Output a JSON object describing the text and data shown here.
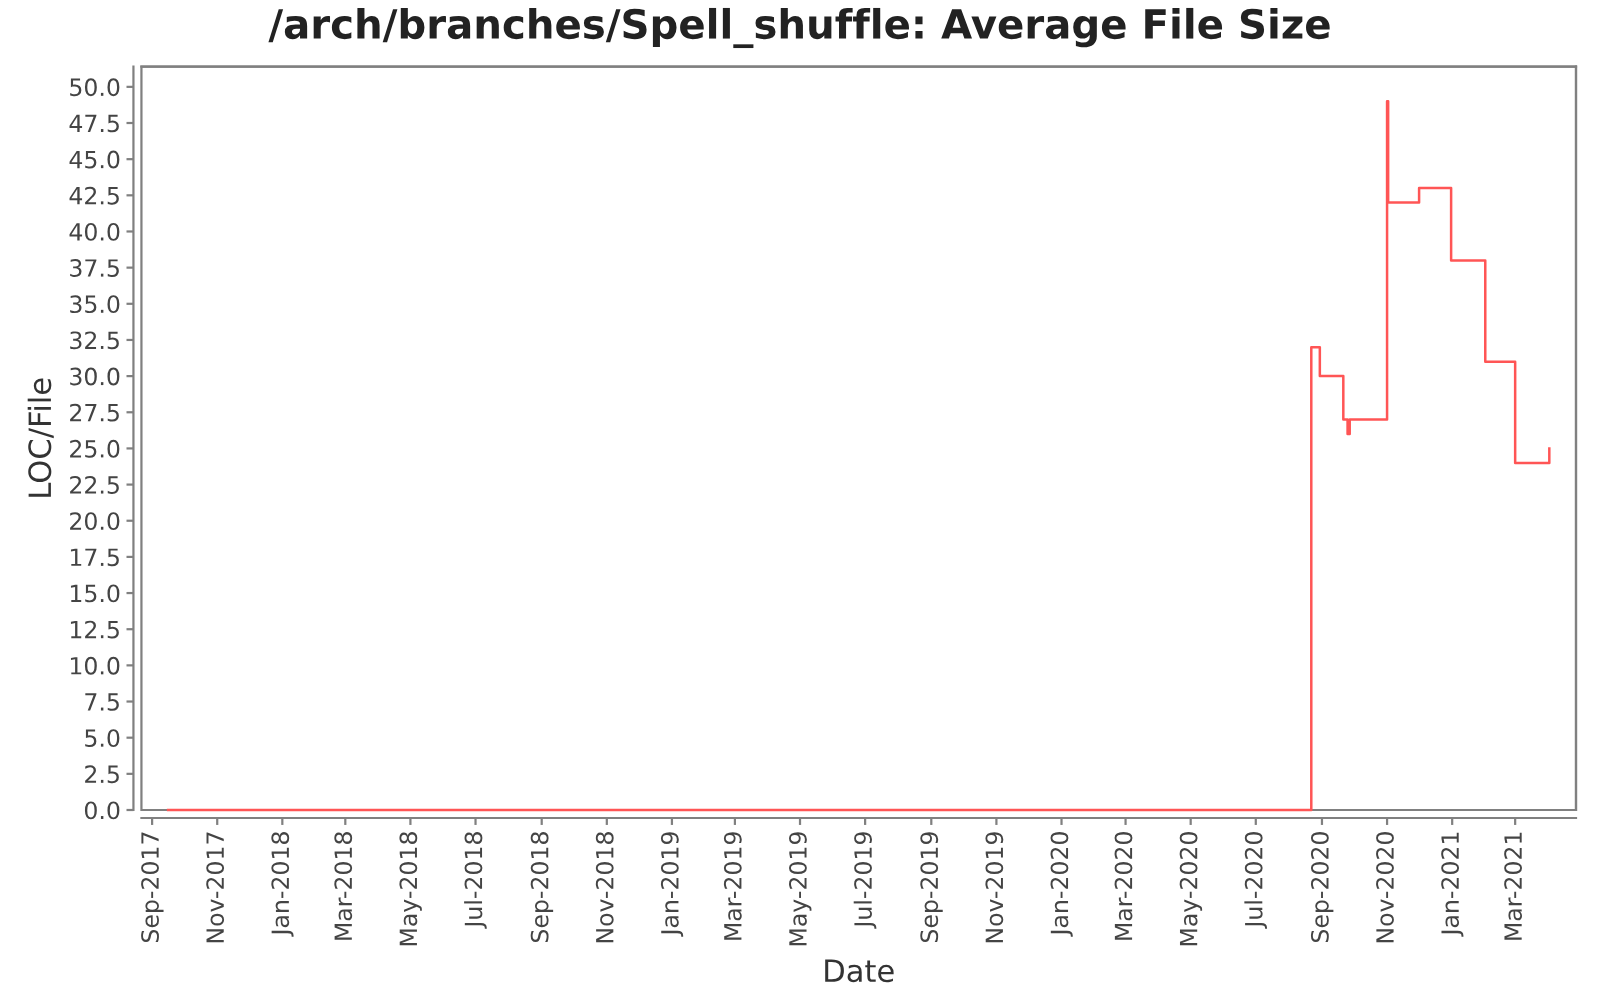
{
  "chart_data": {
    "type": "step",
    "title": "/arch/branches/Spell_shuffle: Average File Size",
    "xlabel": "Date",
    "ylabel": "LOC/File",
    "x": [
      "2017-09-16",
      "2020-08-22",
      "2020-08-30",
      "2020-09-21",
      "2020-09-25",
      "2020-09-27",
      "2020-11-01",
      "2020-11-02",
      "2020-12-01",
      "2020-12-31",
      "2021-02-01",
      "2021-03-01",
      "2021-04-02"
    ],
    "values": [
      0,
      32,
      30,
      27,
      26,
      27,
      49,
      42,
      43,
      38,
      31,
      24,
      25
    ],
    "color": "#ff5555",
    "line_style": "solid",
    "xlim": [
      "2017-08-22",
      "2021-04-27"
    ],
    "xticks": [
      {
        "value": "2017-09-01",
        "label": "Sep-2017"
      },
      {
        "value": "2017-11-01",
        "label": "Nov-2017"
      },
      {
        "value": "2018-01-01",
        "label": "Jan-2018"
      },
      {
        "value": "2018-03-01",
        "label": "Mar-2018"
      },
      {
        "value": "2018-05-01",
        "label": "May-2018"
      },
      {
        "value": "2018-07-01",
        "label": "Jul-2018"
      },
      {
        "value": "2018-09-01",
        "label": "Sep-2018"
      },
      {
        "value": "2018-11-01",
        "label": "Nov-2018"
      },
      {
        "value": "2019-01-01",
        "label": "Jan-2019"
      },
      {
        "value": "2019-03-01",
        "label": "Mar-2019"
      },
      {
        "value": "2019-05-01",
        "label": "May-2019"
      },
      {
        "value": "2019-07-01",
        "label": "Jul-2019"
      },
      {
        "value": "2019-09-01",
        "label": "Sep-2019"
      },
      {
        "value": "2019-11-01",
        "label": "Nov-2019"
      },
      {
        "value": "2020-01-01",
        "label": "Jan-2020"
      },
      {
        "value": "2020-03-01",
        "label": "Mar-2020"
      },
      {
        "value": "2020-05-01",
        "label": "May-2020"
      },
      {
        "value": "2020-07-01",
        "label": "Jul-2020"
      },
      {
        "value": "2020-09-01",
        "label": "Sep-2020"
      },
      {
        "value": "2020-11-01",
        "label": "Nov-2020"
      },
      {
        "value": "2021-01-01",
        "label": "Jan-2021"
      },
      {
        "value": "2021-03-01",
        "label": "Mar-2021"
      }
    ],
    "ylim": [
      0,
      51.4
    ],
    "yticks": [
      {
        "value": 0,
        "label": "0.0"
      },
      2.5,
      {
        "value": 5,
        "label": "5.0"
      },
      7.5,
      {
        "value": 10,
        "label": "10.0"
      },
      12.5,
      {
        "value": 15,
        "label": "15.0"
      },
      17.5,
      {
        "value": 20,
        "label": "20.0"
      },
      22.5,
      {
        "value": 25,
        "label": "25.0"
      },
      27.5,
      {
        "value": 30,
        "label": "30.0"
      },
      32.5,
      {
        "value": 35,
        "label": "35.0"
      },
      37.5,
      {
        "value": 40,
        "label": "40.0"
      },
      42.5,
      {
        "value": 45,
        "label": "45.0"
      },
      47.5,
      {
        "value": 50,
        "label": "50.0"
      }
    ]
  }
}
